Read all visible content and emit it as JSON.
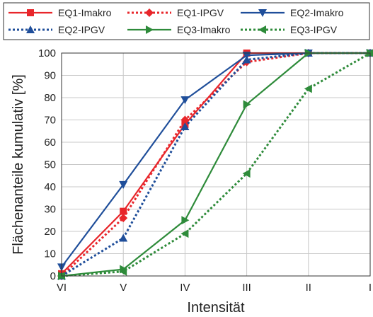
{
  "chart_data": {
    "type": "line",
    "xlabel": "Intensität",
    "ylabel": "Flächenanteile kumulativ [%]",
    "categories": [
      "VI",
      "V",
      "IV",
      "III",
      "II",
      "I"
    ],
    "yticks": [
      "0",
      "10",
      "20",
      "30",
      "40",
      "50",
      "60",
      "70",
      "80",
      "90",
      "100"
    ],
    "ylim": [
      0,
      100
    ],
    "grid": true,
    "legend_position": "top",
    "series": [
      {
        "name": "EQ1-Imakro",
        "color": "#e8262b",
        "dash": "solid",
        "marker": "square",
        "values": [
          1,
          29,
          68,
          100,
          100,
          100
        ]
      },
      {
        "name": "EQ1-IPGV",
        "color": "#e8262b",
        "dash": "dotted",
        "marker": "diamond",
        "values": [
          0,
          26,
          70,
          96,
          100,
          100
        ]
      },
      {
        "name": "EQ2-Imakro",
        "color": "#1f4e9a",
        "dash": "solid",
        "marker": "triangle-down",
        "values": [
          4,
          41,
          79,
          99,
          100,
          100
        ]
      },
      {
        "name": "EQ2-IPGV",
        "color": "#1f4e9a",
        "dash": "dotted",
        "marker": "triangle-up",
        "values": [
          0,
          17,
          67,
          97,
          100,
          100
        ]
      },
      {
        "name": "EQ3-Imakro",
        "color": "#2e8b3a",
        "dash": "solid",
        "marker": "triangle-right",
        "values": [
          0,
          3,
          25,
          77,
          100,
          100
        ]
      },
      {
        "name": "EQ3-IPGV",
        "color": "#2e8b3a",
        "dash": "dotted",
        "marker": "triangle-left",
        "values": [
          0,
          2,
          19,
          46,
          84,
          100
        ]
      }
    ]
  }
}
